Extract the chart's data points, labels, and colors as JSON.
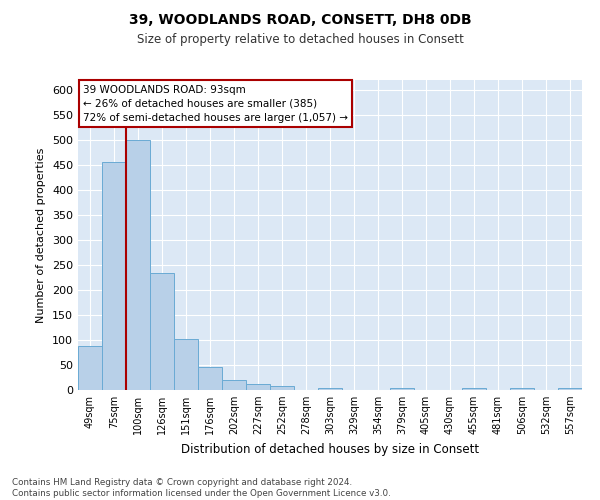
{
  "title1": "39, WOODLANDS ROAD, CONSETT, DH8 0DB",
  "title2": "Size of property relative to detached houses in Consett",
  "xlabel": "Distribution of detached houses by size in Consett",
  "ylabel": "Number of detached properties",
  "categories": [
    "49sqm",
    "75sqm",
    "100sqm",
    "126sqm",
    "151sqm",
    "176sqm",
    "202sqm",
    "227sqm",
    "252sqm",
    "278sqm",
    "303sqm",
    "329sqm",
    "354sqm",
    "379sqm",
    "405sqm",
    "430sqm",
    "455sqm",
    "481sqm",
    "506sqm",
    "532sqm",
    "557sqm"
  ],
  "values": [
    88,
    457,
    500,
    235,
    103,
    47,
    20,
    13,
    8,
    0,
    5,
    0,
    0,
    5,
    0,
    0,
    5,
    0,
    5,
    0,
    5
  ],
  "bar_color": "#b8d0e8",
  "bar_edge_color": "#6aaad4",
  "vline_color": "#aa0000",
  "vline_x": 1.5,
  "ylim": [
    0,
    620
  ],
  "yticks": [
    0,
    50,
    100,
    150,
    200,
    250,
    300,
    350,
    400,
    450,
    500,
    550,
    600
  ],
  "background_color": "#dce8f5",
  "grid_color": "#ffffff",
  "annot_line1": "39 WOODLANDS ROAD: 93sqm",
  "annot_line2": "← 26% of detached houses are smaller (385)",
  "annot_line3": "72% of semi-detached houses are larger (1,057) →",
  "footnote_line1": "Contains HM Land Registry data © Crown copyright and database right 2024.",
  "footnote_line2": "Contains public sector information licensed under the Open Government Licence v3.0."
}
